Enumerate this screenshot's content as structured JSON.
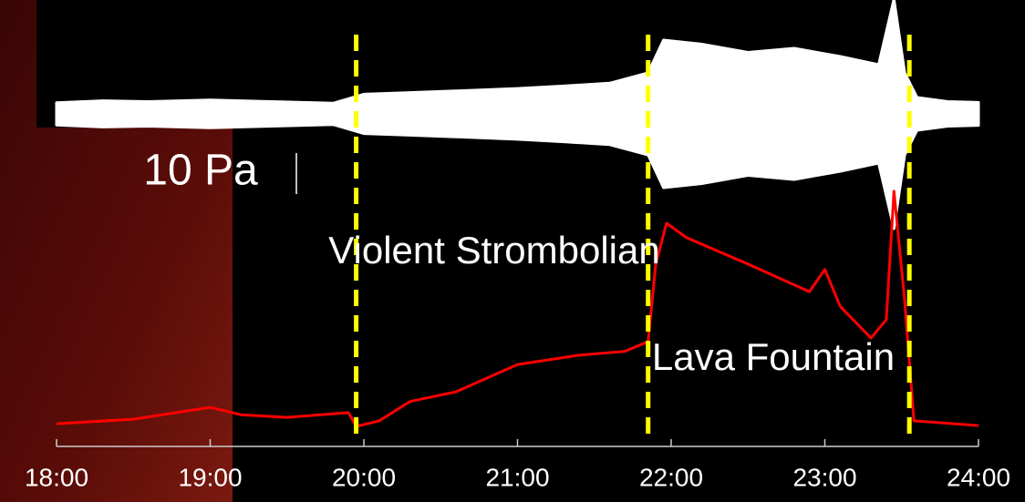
{
  "chart_data": {
    "type": "line",
    "x": [
      18.0,
      18.5,
      19.0,
      19.2,
      19.5,
      19.9,
      19.95,
      20.1,
      20.3,
      20.6,
      21.0,
      21.4,
      21.7,
      21.85,
      21.9,
      21.97,
      22.1,
      22.5,
      22.9,
      23.0,
      23.1,
      23.3,
      23.4,
      23.45,
      23.52,
      23.58,
      24.0
    ],
    "series": [
      {
        "color": "#ff0000",
        "values": [
          8.6,
          10.3,
          14.8,
          12,
          11,
          12.8,
          7.6,
          9.7,
          17,
          20.7,
          31,
          34.5,
          36,
          39.7,
          69,
          84.5,
          79,
          69,
          58.6,
          67,
          53,
          41,
          48,
          96.6,
          55,
          9.7,
          7.9
        ]
      }
    ],
    "xlim": [
      18,
      24
    ],
    "ylim": [
      0,
      100
    ],
    "xticks": [
      {
        "value": 18,
        "label": "18:00"
      },
      {
        "value": 19,
        "label": "19:00"
      },
      {
        "value": 20,
        "label": "20:00"
      },
      {
        "value": 21,
        "label": "21:00"
      },
      {
        "value": 22,
        "label": "22:00"
      },
      {
        "value": 23,
        "label": "23:00"
      },
      {
        "value": 24,
        "label": "24:00"
      }
    ],
    "waveform": {
      "color": "#ffffff",
      "x": [
        18.0,
        18.3,
        18.6,
        19.0,
        19.4,
        19.8,
        20.0,
        20.3,
        20.6,
        21.0,
        21.3,
        21.6,
        21.85,
        21.95,
        22.2,
        22.5,
        22.8,
        23.1,
        23.35,
        23.45,
        23.52,
        23.6,
        23.8,
        24.0
      ],
      "amplitude": [
        2.7,
        3.2,
        3.0,
        3.4,
        3.0,
        2.6,
        4.8,
        5.2,
        5.6,
        6.2,
        6.8,
        7.5,
        10,
        18,
        17,
        15,
        16,
        14,
        12,
        28,
        10,
        4,
        3,
        2.8
      ]
    },
    "scale_bar": {
      "value": 10,
      "label": "10 Pa"
    },
    "phase_boundaries": [
      19.95,
      21.85,
      23.55
    ],
    "annotations": [
      "Violent Strombolian",
      "Lava Fountain"
    ]
  }
}
